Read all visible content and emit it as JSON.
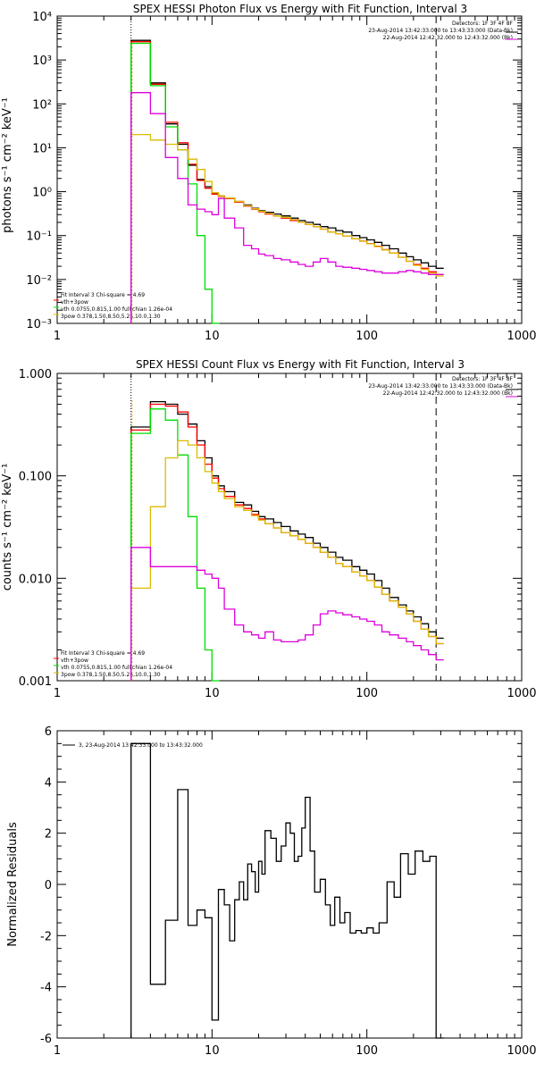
{
  "chart_data": [
    {
      "type": "line",
      "title": "SPEX HESSI Photon Flux vs Energy with Fit Function, Interval 3",
      "ylabel": "photons s⁻¹ cm⁻² keV⁻¹",
      "xlabel": "",
      "xscale": "log",
      "yscale": "log",
      "xlim": [
        1,
        1000
      ],
      "ylim": [
        0.001,
        10000
      ],
      "xticks": [
        "1",
        "10",
        "100",
        "1000"
      ],
      "yticks": [
        "10⁻³",
        "10⁻²",
        "10⁻¹",
        "10⁰",
        "10¹",
        "10²",
        "10³",
        "10⁴"
      ],
      "ytick_values": [
        0.001,
        0.01,
        0.1,
        1,
        10,
        100,
        1000,
        10000
      ],
      "vlines": [
        3,
        280
      ],
      "header_lines": [
        "Detectors: 1F 3F 4F 8F",
        "23-Aug-2014 13:42:33.000 to 13:43:33.000 (Data-Bk)",
        "22-Aug-2014 12:42:32.000 to 12:43:32.000 (Bk)"
      ],
      "fit_lines": [
        "Fit Interval 3  Chi-square = 4.69",
        "vth+3pow",
        "vth 0.0755,0.815,1.00  full chian 1.26e-04",
        "3pow 0.378,1.50,8.50,5.25,10.0,1.30"
      ],
      "series": [
        {
          "name": "data-bk",
          "color": "#000000",
          "x": [
            3,
            4,
            5,
            6,
            7,
            8,
            9,
            10,
            11,
            12,
            14,
            16,
            18,
            20,
            22,
            25,
            28,
            32,
            36,
            40,
            45,
            50,
            56,
            63,
            70,
            80,
            90,
            100,
            112,
            125,
            140,
            160,
            180,
            200,
            224,
            250,
            280
          ],
          "y": [
            2800,
            300,
            35,
            12,
            4,
            1.9,
            1.3,
            0.9,
            0.8,
            0.72,
            0.6,
            0.5,
            0.42,
            0.37,
            0.34,
            0.31,
            0.28,
            0.25,
            0.22,
            0.2,
            0.18,
            0.16,
            0.15,
            0.13,
            0.12,
            0.1,
            0.09,
            0.08,
            0.07,
            0.06,
            0.05,
            0.04,
            0.033,
            0.028,
            0.024,
            0.02,
            0.018
          ]
        },
        {
          "name": "vth+3pow",
          "color": "#ff0000",
          "x": [
            3,
            4,
            5,
            6,
            7,
            8,
            9,
            10,
            11,
            12,
            14,
            16,
            18,
            20,
            22,
            25,
            28,
            32,
            36,
            40,
            45,
            50,
            56,
            63,
            70,
            80,
            90,
            100,
            112,
            125,
            140,
            160,
            180,
            200,
            224,
            250,
            280
          ],
          "y": [
            2600,
            280,
            38,
            13,
            4.2,
            1.8,
            1.2,
            0.88,
            0.78,
            0.7,
            0.58,
            0.47,
            0.4,
            0.35,
            0.31,
            0.28,
            0.25,
            0.22,
            0.2,
            0.18,
            0.16,
            0.14,
            0.12,
            0.11,
            0.098,
            0.085,
            0.075,
            0.066,
            0.057,
            0.048,
            0.04,
            0.032,
            0.026,
            0.022,
            0.018,
            0.015,
            0.013
          ]
        },
        {
          "name": "vth",
          "color": "#00dd00",
          "x": [
            3,
            4,
            5,
            6,
            7,
            8,
            9,
            10
          ],
          "y": [
            2400,
            260,
            30,
            9,
            1.5,
            0.1,
            0.006,
            0.001
          ]
        },
        {
          "name": "3pow",
          "color": "#ddbb00",
          "x": [
            3,
            4,
            5,
            6,
            7,
            8,
            9,
            10,
            11,
            12,
            14,
            16,
            18,
            20,
            22,
            25,
            28,
            32,
            36,
            40,
            45,
            50,
            56,
            63,
            70,
            80,
            90,
            100,
            112,
            125,
            140,
            160,
            180,
            200,
            224,
            250,
            280
          ],
          "y": [
            20,
            15,
            12,
            9,
            5.5,
            3.2,
            1.7,
            0.95,
            0.8,
            0.72,
            0.6,
            0.48,
            0.41,
            0.36,
            0.32,
            0.28,
            0.26,
            0.23,
            0.2,
            0.18,
            0.16,
            0.14,
            0.12,
            0.11,
            0.098,
            0.085,
            0.074,
            0.065,
            0.056,
            0.047,
            0.04,
            0.032,
            0.026,
            0.021,
            0.017,
            0.014,
            0.012
          ]
        },
        {
          "name": "bk",
          "color": "#dd00dd",
          "x": [
            3,
            4,
            5,
            6,
            7,
            8,
            9,
            10,
            11,
            12,
            14,
            16,
            18,
            20,
            22,
            25,
            28,
            32,
            36,
            40,
            45,
            50,
            56,
            63,
            70,
            80,
            90,
            100,
            112,
            125,
            140,
            160,
            180,
            200,
            224,
            250,
            280
          ],
          "y": [
            180,
            60,
            6,
            2,
            0.5,
            0.4,
            0.35,
            0.3,
            0.7,
            0.25,
            0.15,
            0.06,
            0.05,
            0.038,
            0.035,
            0.03,
            0.028,
            0.025,
            0.022,
            0.02,
            0.025,
            0.03,
            0.025,
            0.02,
            0.019,
            0.018,
            0.017,
            0.016,
            0.015,
            0.014,
            0.014,
            0.015,
            0.016,
            0.015,
            0.014,
            0.013,
            0.013
          ]
        }
      ]
    },
    {
      "type": "line",
      "title": "SPEX HESSI Count Flux vs Energy with Fit Function, Interval 3",
      "ylabel": "counts s⁻¹ cm⁻² keV⁻¹",
      "xlabel": "",
      "xscale": "log",
      "yscale": "log",
      "xlim": [
        1,
        1000
      ],
      "ylim": [
        0.001,
        1
      ],
      "xticks": [
        "1",
        "10",
        "100",
        "1000"
      ],
      "yticks": [
        "0.001",
        "0.010",
        "0.100",
        "1.000"
      ],
      "ytick_values": [
        0.001,
        0.01,
        0.1,
        1
      ],
      "vlines": [
        3,
        280
      ],
      "header_lines": [
        "Detectors: 1F 3F 4F 8F",
        "23-Aug-2014 13:42:33.000 to 13:43:33.000 (Data-Bk)",
        "22-Aug-2014 12:42:32.000 to 12:43:32.000 (Bk)"
      ],
      "fit_lines": [
        "Fit Interval 3  Chi-square = 4.69",
        "vth+3pow",
        "vth 0.0755,0.815,1.00  full chian 1.26e-04",
        "3pow 0.378,1.50,8.50,5.25,10.0,1.30"
      ],
      "series": [
        {
          "name": "data-bk",
          "color": "#000000",
          "x": [
            3,
            4,
            5,
            6,
            7,
            8,
            9,
            10,
            11,
            12,
            14,
            16,
            18,
            20,
            22,
            25,
            28,
            32,
            36,
            40,
            45,
            50,
            56,
            63,
            70,
            80,
            90,
            100,
            112,
            125,
            140,
            160,
            180,
            200,
            224,
            250,
            280
          ],
          "y": [
            0.3,
            0.53,
            0.5,
            0.4,
            0.32,
            0.22,
            0.15,
            0.1,
            0.08,
            0.07,
            0.055,
            0.052,
            0.045,
            0.04,
            0.038,
            0.035,
            0.032,
            0.029,
            0.027,
            0.025,
            0.022,
            0.02,
            0.018,
            0.016,
            0.015,
            0.013,
            0.012,
            0.011,
            0.0095,
            0.008,
            0.0065,
            0.0055,
            0.0048,
            0.0042,
            0.0036,
            0.003,
            0.0026
          ]
        },
        {
          "name": "vth+3pow",
          "color": "#ff0000",
          "x": [
            3,
            4,
            5,
            6,
            7,
            8,
            9,
            10,
            11,
            12,
            14,
            16,
            18,
            20,
            22,
            25,
            28,
            32,
            36,
            40,
            45,
            50,
            56,
            63,
            70,
            80,
            90,
            100,
            112,
            125,
            140,
            160,
            180,
            200,
            224,
            250,
            280
          ],
          "y": [
            0.28,
            0.5,
            0.48,
            0.42,
            0.3,
            0.2,
            0.13,
            0.095,
            0.075,
            0.063,
            0.052,
            0.048,
            0.042,
            0.038,
            0.034,
            0.031,
            0.028,
            0.026,
            0.024,
            0.022,
            0.02,
            0.018,
            0.016,
            0.014,
            0.013,
            0.0115,
            0.0105,
            0.0095,
            0.0082,
            0.007,
            0.006,
            0.0052,
            0.0045,
            0.0038,
            0.0032,
            0.0027,
            0.0023
          ]
        },
        {
          "name": "vth",
          "color": "#00dd00",
          "x": [
            3,
            4,
            5,
            6,
            7,
            8,
            9,
            10
          ],
          "y": [
            0.26,
            0.45,
            0.35,
            0.16,
            0.04,
            0.008,
            0.002,
            0.001
          ]
        },
        {
          "name": "3pow",
          "color": "#ddbb00",
          "x": [
            3,
            4,
            5,
            6,
            7,
            8,
            9,
            10,
            11,
            12,
            14,
            16,
            18,
            20,
            22,
            25,
            28,
            32,
            36,
            40,
            45,
            50,
            56,
            63,
            70,
            80,
            90,
            100,
            112,
            125,
            140,
            160,
            180,
            200,
            224,
            250,
            280
          ],
          "y": [
            0.008,
            0.05,
            0.15,
            0.22,
            0.2,
            0.15,
            0.11,
            0.085,
            0.07,
            0.06,
            0.05,
            0.046,
            0.041,
            0.037,
            0.034,
            0.031,
            0.028,
            0.026,
            0.024,
            0.022,
            0.02,
            0.018,
            0.016,
            0.014,
            0.013,
            0.0115,
            0.0105,
            0.0095,
            0.0082,
            0.007,
            0.006,
            0.0052,
            0.0045,
            0.0038,
            0.0032,
            0.0027,
            0.0023
          ]
        },
        {
          "name": "bk",
          "color": "#dd00dd",
          "x": [
            3,
            4,
            5,
            6,
            7,
            8,
            9,
            10,
            11,
            12,
            14,
            16,
            18,
            20,
            22,
            25,
            28,
            32,
            36,
            40,
            45,
            50,
            56,
            63,
            70,
            80,
            90,
            100,
            112,
            125,
            140,
            160,
            180,
            200,
            224,
            250,
            280
          ],
          "y": [
            0.02,
            0.013,
            0.013,
            0.013,
            0.013,
            0.012,
            0.011,
            0.01,
            0.008,
            0.005,
            0.0035,
            0.003,
            0.0028,
            0.0026,
            0.003,
            0.0025,
            0.0024,
            0.0024,
            0.0025,
            0.0028,
            0.0035,
            0.0045,
            0.0048,
            0.0046,
            0.0044,
            0.0042,
            0.004,
            0.0038,
            0.0035,
            0.003,
            0.0028,
            0.0026,
            0.0024,
            0.0022,
            0.002,
            0.0018,
            0.0016
          ]
        }
      ]
    },
    {
      "type": "line",
      "title": "",
      "ylabel": "Normalized Residuals",
      "xlabel": "",
      "xscale": "log",
      "yscale": "linear",
      "xlim": [
        1,
        1000
      ],
      "ylim": [
        -6,
        6
      ],
      "xticks": [
        "1",
        "10",
        "100",
        "1000"
      ],
      "yticks": [
        "-6",
        "-4",
        "-2",
        "0",
        "2",
        "4",
        "6"
      ],
      "ytick_values": [
        -6,
        -4,
        -2,
        0,
        2,
        4,
        6
      ],
      "legend": "3, 23-Aug-2014 13:42:33.000 to 13:43:32.000",
      "series": [
        {
          "name": "residuals",
          "color": "#000000",
          "x": [
            3,
            4,
            5,
            6,
            7,
            8,
            9,
            10,
            11,
            12,
            13,
            14,
            15,
            16,
            17,
            18,
            19,
            20,
            21,
            22,
            24,
            26,
            28,
            30,
            32,
            34,
            36,
            38,
            40,
            43,
            46,
            50,
            54,
            58,
            62,
            67,
            72,
            78,
            85,
            92,
            100,
            110,
            120,
            135,
            150,
            165,
            185,
            205,
            230,
            255,
            280
          ],
          "y": [
            5.5,
            -3.9,
            -1.4,
            3.7,
            -1.6,
            -1.0,
            -1.3,
            -5.3,
            -0.2,
            -0.8,
            -2.2,
            -0.6,
            0.1,
            -0.6,
            0.8,
            0.5,
            -0.3,
            0.9,
            0.4,
            2.1,
            1.8,
            0.9,
            1.5,
            2.4,
            2.0,
            0.9,
            1.1,
            2.2,
            3.4,
            1.3,
            -0.3,
            0.2,
            -0.8,
            -1.6,
            -0.5,
            -1.5,
            -1.1,
            -1.9,
            -1.8,
            -1.9,
            -1.7,
            -1.9,
            -1.5,
            0.1,
            -0.5,
            1.2,
            0.4,
            1.3,
            0.9,
            1.1,
            -6.0
          ]
        }
      ]
    }
  ]
}
